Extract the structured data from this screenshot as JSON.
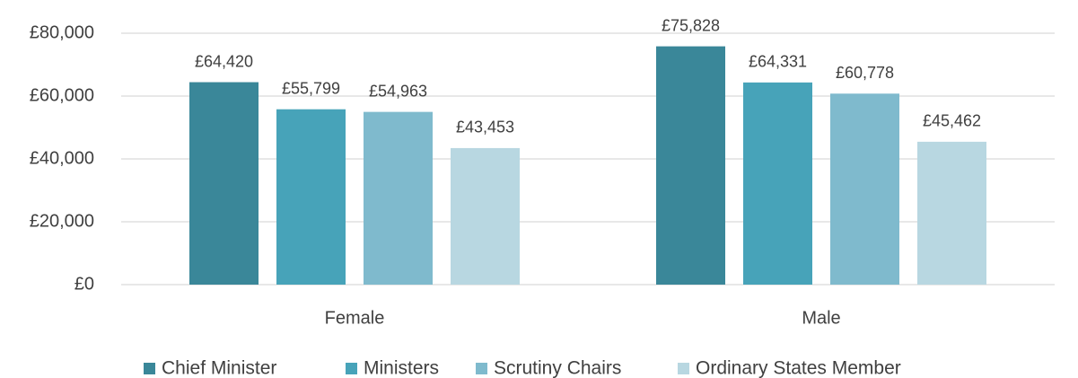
{
  "chart_data": {
    "type": "bar",
    "categories": [
      "Female",
      "Male"
    ],
    "series": [
      {
        "name": "Chief Minister",
        "color": "#3a8799",
        "values": [
          64420,
          75828
        ],
        "value_labels": [
          "£64,420",
          "£75,828"
        ]
      },
      {
        "name": "Ministers",
        "color": "#47a3b9",
        "values": [
          55799,
          64331
        ],
        "value_labels": [
          "£55,799",
          "£64,331"
        ]
      },
      {
        "name": "Scrutiny Chairs",
        "color": "#7fbacd",
        "values": [
          54963,
          60778
        ],
        "value_labels": [
          "£54,963",
          "£60,778"
        ]
      },
      {
        "name": "Ordinary States Member",
        "color": "#b8d7e1",
        "values": [
          43453,
          45462
        ],
        "value_labels": [
          "£43,453",
          "£45,462"
        ]
      }
    ],
    "ylim": [
      0,
      80000
    ],
    "yticks": [
      {
        "value": 0,
        "label": "£0"
      },
      {
        "value": 20000,
        "label": "£20,000"
      },
      {
        "value": 40000,
        "label": "£40,000"
      },
      {
        "value": 60000,
        "label": "£60,000"
      },
      {
        "value": 80000,
        "label": "£80,000"
      }
    ],
    "grid": true,
    "legend": "bottom"
  }
}
